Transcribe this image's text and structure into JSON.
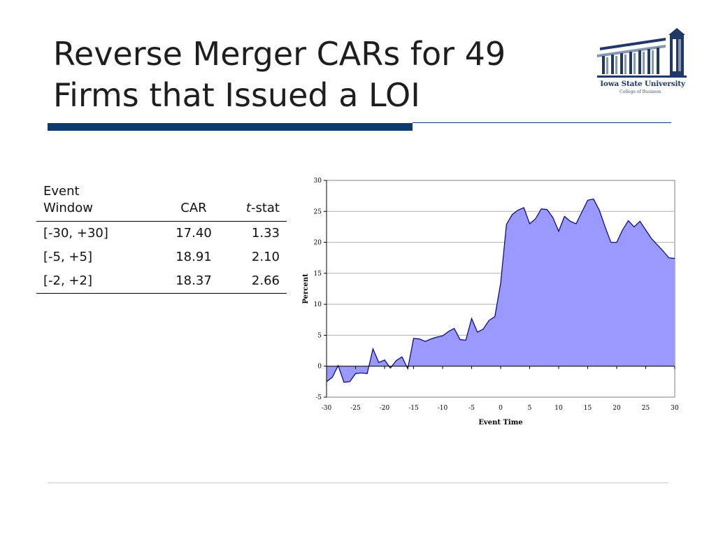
{
  "slide": {
    "title_line1": "Reverse Merger CARs for 49",
    "title_line2": "Firms that Issued a LOI"
  },
  "logo": {
    "name": "Iowa State University",
    "subtitle": "College of Business"
  },
  "table": {
    "headers": {
      "window": [
        "Event",
        "Window"
      ],
      "car": "CAR",
      "tstat_italic": "t",
      "tstat_rest": "-stat"
    },
    "rows": [
      {
        "window": "[-30, +30]",
        "car": "17.40",
        "tstat": "1.33"
      },
      {
        "window": "[-5, +5]",
        "car": "18.91",
        "tstat": "2.10"
      },
      {
        "window": "[-2, +2]",
        "car": "18.37",
        "tstat": "2.66"
      }
    ]
  },
  "chart_data": {
    "type": "area",
    "xlabel": "Event Time",
    "ylabel": "Percent",
    "xlim": [
      -30,
      30
    ],
    "ylim": [
      -5,
      30
    ],
    "xticks": [
      -30,
      -25,
      -20,
      -15,
      -10,
      -5,
      0,
      5,
      10,
      15,
      20,
      25,
      30
    ],
    "yticks": [
      -5,
      0,
      5,
      10,
      15,
      20,
      25,
      30
    ],
    "grid": "horizontal",
    "fill_color": "#9999ff",
    "line_color": "#000080",
    "series": [
      {
        "x": [
          -30,
          -29,
          -28,
          -27,
          -26,
          -25,
          -24,
          -23,
          -22,
          -21,
          -20,
          -19,
          -18,
          -17,
          -16,
          -15,
          -14,
          -13,
          -12,
          -11,
          -10,
          -9,
          -8,
          -7,
          -6,
          -5,
          -4,
          -3,
          -2,
          -1,
          0,
          1,
          2,
          3,
          4,
          5,
          6,
          7,
          8,
          9,
          10,
          11,
          12,
          13,
          14,
          15,
          16,
          17,
          18,
          19,
          20,
          21,
          22,
          23,
          24,
          25,
          26,
          27,
          28,
          29,
          30
        ],
        "values": [
          -2.5,
          -1.8,
          0.1,
          -2.6,
          -2.5,
          -1.2,
          -1.1,
          -1.2,
          2.8,
          0.6,
          1.0,
          -0.3,
          0.9,
          1.5,
          -0.4,
          4.5,
          4.4,
          4.0,
          4.4,
          4.7,
          4.9,
          5.6,
          6.1,
          4.3,
          4.2,
          7.7,
          5.5,
          6.0,
          7.4,
          8.0,
          13.4,
          22.9,
          24.5,
          25.2,
          25.6,
          23.0,
          23.8,
          25.4,
          25.3,
          24.0,
          21.8,
          24.2,
          23.4,
          23.0,
          24.9,
          26.8,
          27.0,
          25.2,
          22.5,
          20.0,
          20.0,
          22.0,
          23.5,
          22.5,
          23.4,
          22.0,
          20.6,
          19.6,
          18.6,
          17.5,
          17.4
        ]
      }
    ]
  }
}
